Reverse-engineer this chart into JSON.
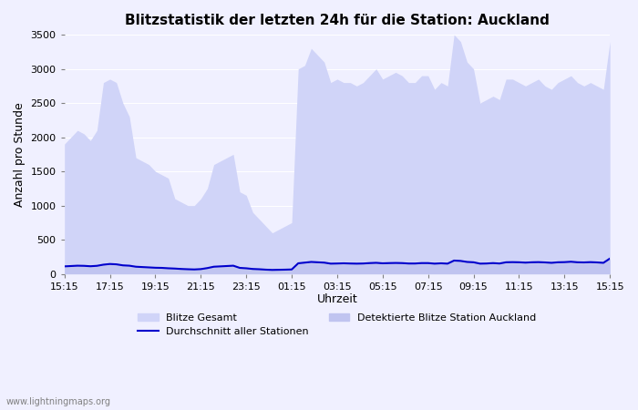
{
  "title": "Blitzstatistik der letzten 24h für die Station: Auckland",
  "xlabel": "Uhrzeit",
  "ylabel": "Anzahl pro Stunde",
  "watermark": "www.lightningmaps.org",
  "x_ticks": [
    "15:15",
    "17:15",
    "19:15",
    "21:15",
    "23:15",
    "01:15",
    "03:15",
    "05:15",
    "07:15",
    "09:15",
    "11:15",
    "13:15",
    "15:15"
  ],
  "ylim": [
    0,
    3500
  ],
  "yticks": [
    0,
    500,
    1000,
    1500,
    2000,
    2500,
    3000,
    3500
  ],
  "color_gesamt_fill": "#d0d4f8",
  "color_gesamt_line": "#c8ccf0",
  "color_station_fill": "#c0c4f0",
  "color_station_line": "#a0a8e8",
  "color_avg_line": "#0000cc",
  "background_color": "#f0f0ff",
  "gesamt_values": [
    1900,
    2000,
    2100,
    2050,
    1950,
    2100,
    2800,
    2850,
    2800,
    2500,
    2300,
    1700,
    1650,
    1600,
    1500,
    1450,
    1400,
    1100,
    1050,
    1000,
    1000,
    1100,
    1250,
    1600,
    1650,
    1700,
    1750,
    1200,
    1150,
    900,
    800,
    700,
    600,
    650,
    700,
    750,
    3000,
    3050,
    3300,
    3200,
    3100,
    2800,
    2850,
    2800,
    2800,
    2750,
    2800,
    2900,
    3000,
    2850,
    2900,
    2950,
    2900,
    2800,
    2800,
    2900,
    2900,
    2700,
    2800,
    2750,
    3500,
    3400,
    3100,
    3000,
    2500,
    2550,
    2600,
    2550,
    2850,
    2850,
    2800,
    2750,
    2800,
    2850,
    2750,
    2700,
    2800,
    2850,
    2900,
    2800,
    2750,
    2800,
    2750,
    2700,
    3400
  ],
  "station_values": [
    100,
    120,
    130,
    125,
    110,
    120,
    140,
    150,
    145,
    130,
    125,
    110,
    105,
    100,
    95,
    90,
    85,
    80,
    75,
    70,
    68,
    72,
    90,
    110,
    115,
    120,
    125,
    90,
    85,
    75,
    70,
    65,
    60,
    62,
    65,
    68,
    160,
    170,
    180,
    175,
    170,
    155,
    158,
    160,
    158,
    155,
    158,
    162,
    168,
    160,
    162,
    165,
    162,
    158,
    158,
    162,
    162,
    155,
    160,
    155,
    200,
    195,
    180,
    175,
    155,
    158,
    162,
    158,
    175,
    178,
    175,
    170,
    175,
    178,
    172,
    168,
    175,
    178,
    182,
    175,
    172,
    178,
    172,
    168,
    230
  ],
  "avg_values": [
    110,
    115,
    120,
    118,
    112,
    118,
    135,
    145,
    140,
    125,
    120,
    105,
    100,
    95,
    90,
    88,
    82,
    78,
    72,
    68,
    65,
    70,
    85,
    105,
    110,
    115,
    120,
    88,
    82,
    72,
    68,
    62,
    58,
    60,
    62,
    65,
    155,
    165,
    175,
    170,
    165,
    150,
    152,
    155,
    152,
    150,
    152,
    158,
    162,
    155,
    158,
    160,
    158,
    152,
    152,
    158,
    158,
    150,
    155,
    150,
    195,
    190,
    175,
    170,
    150,
    152,
    158,
    152,
    170,
    172,
    170,
    165,
    170,
    172,
    168,
    162,
    170,
    172,
    178,
    170,
    168,
    172,
    168,
    162,
    225
  ]
}
